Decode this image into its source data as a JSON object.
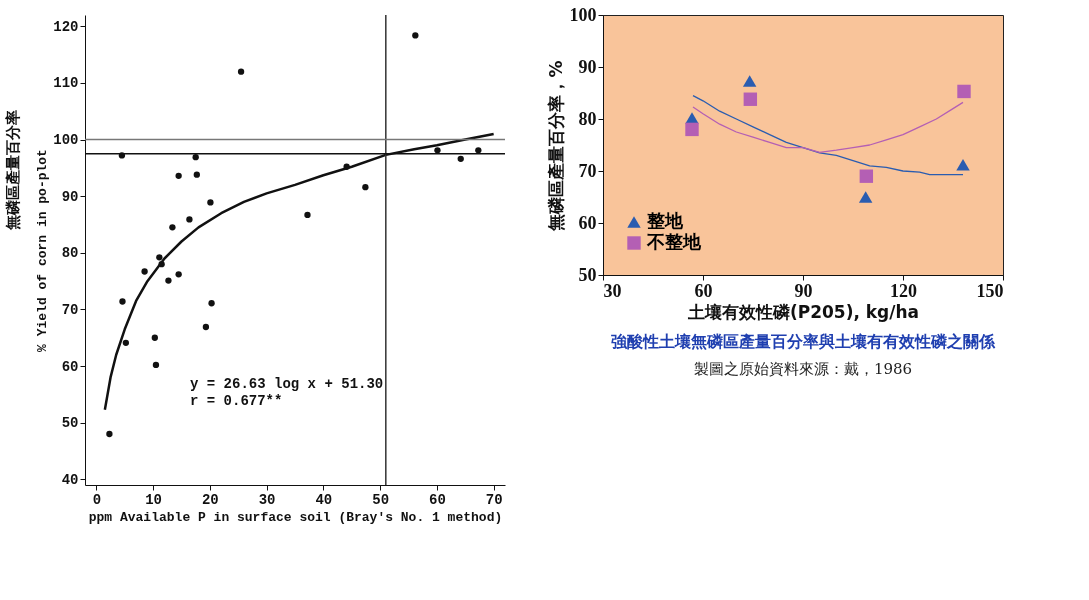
{
  "chart_data": [
    {
      "type": "scatter",
      "xlabel": "ppm Available P in surface soil (Bray's No. 1 method)",
      "ylabel": "% Yield of corn in po-plot",
      "annotations": [
        "無磷區產量百分率",
        "y = 26.63 log x + 51.30",
        "r = 0.677**"
      ],
      "xlim": [
        -2,
        72
      ],
      "ylim": [
        39,
        122
      ],
      "xticks": [
        0,
        10,
        20,
        30,
        40,
        50,
        60,
        70
      ],
      "yticks": [
        40,
        50,
        60,
        70,
        80,
        90,
        100,
        110,
        120
      ],
      "grid": false,
      "series": [
        {
          "color": "#111111",
          "marker": "circle",
          "x": [
            4.5,
            17.5,
            14.5,
            17.7,
            20.1,
            16.4,
            13.4,
            25.5,
            37.2,
            44.1,
            47.4,
            56.2,
            60.1,
            67.3,
            64.2,
            11.1,
            11.5,
            8.5,
            14.5,
            12.7,
            4.6,
            20.3,
            19.3,
            5.2,
            10.3,
            10.5,
            2.3
          ],
          "values": [
            97.2,
            96.9,
            93.6,
            93.8,
            88.9,
            85.9,
            84.5,
            112.0,
            86.7,
            95.2,
            91.6,
            118.4,
            98.1,
            98.1,
            96.6,
            79.2,
            78.0,
            76.7,
            76.2,
            75.1,
            71.4,
            71.1,
            66.9,
            64.1,
            65.0,
            60.2,
            48.0
          ]
        },
        {
          "type": "line",
          "color": "#111111",
          "x": [
            1.5,
            2.5,
            3.5,
            5,
            7,
            9,
            12,
            15,
            18,
            22,
            26,
            30,
            35,
            40,
            45,
            51,
            56,
            60,
            65,
            70
          ],
          "values": [
            52.3,
            58,
            62,
            66.5,
            71.5,
            75,
            79,
            82,
            84.5,
            87,
            89,
            90.5,
            92,
            93.7,
            95.2,
            97.3,
            98.3,
            99,
            100,
            101
          ]
        }
      ],
      "ref_lines": [
        {
          "axis": "x",
          "value": 51,
          "color": "#333333"
        },
        {
          "axis": "y",
          "value": 100,
          "color": "#777777"
        },
        {
          "axis": "y",
          "value": 97.5,
          "color": "#111111"
        }
      ]
    },
    {
      "type": "scatter",
      "title": "強酸性土壤無磷區產量百分率與土壤有有效性磷之關係",
      "xlabel": "土壤有效性磷(P205), kg/ha",
      "ylabel": "無磷區產量百分率，%",
      "annotations": [
        "製圖之原始資料來源：戴，1986"
      ],
      "xlim": [
        30,
        150
      ],
      "ylim": [
        50,
        100
      ],
      "xticks": [
        30,
        60,
        90,
        120,
        150
      ],
      "yticks": [
        50,
        60,
        70,
        80,
        90,
        100
      ],
      "grid": false,
      "legend": "bottom left",
      "series": [
        {
          "name": "整地",
          "color": "#2a5cb0",
          "marker": "triangle",
          "x": [
            56.7,
            74,
            108.8,
            138
          ],
          "values": [
            80.2,
            87.3,
            65,
            71.2
          ]
        },
        {
          "name": "不整地",
          "color": "#b45fb4",
          "marker": "square",
          "x": [
            56.7,
            74.2,
            109,
            138.3
          ],
          "values": [
            78,
            83.8,
            69,
            85.3
          ]
        },
        {
          "type": "line",
          "color": "#2a5cb0",
          "x": [
            57,
            60,
            65,
            70,
            75,
            80,
            85,
            90,
            95,
            100,
            105,
            110,
            115,
            120,
            125,
            128,
            138
          ],
          "values": [
            84.5,
            83.5,
            81.5,
            80,
            78.5,
            77,
            75.5,
            74.5,
            73.5,
            73,
            72,
            71,
            70.7,
            70,
            69.8,
            69.3,
            69.3
          ]
        },
        {
          "type": "line",
          "color": "#b45fb4",
          "x": [
            57,
            60,
            65,
            70,
            75,
            80,
            85,
            90,
            95,
            100,
            105,
            110,
            115,
            120,
            125,
            130,
            135,
            138
          ],
          "values": [
            82.3,
            81,
            79,
            77.5,
            76.5,
            75.5,
            74.5,
            74.5,
            73.6,
            74,
            74.5,
            75,
            76,
            77,
            78.5,
            80,
            82,
            83.2
          ]
        }
      ]
    }
  ]
}
